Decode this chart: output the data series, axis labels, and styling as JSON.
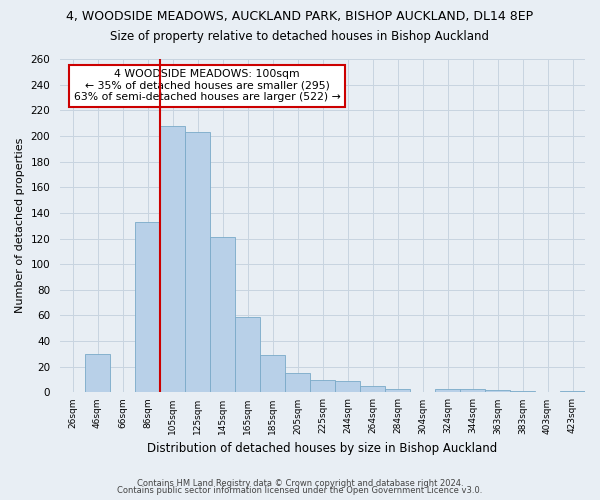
{
  "title": "4, WOODSIDE MEADOWS, AUCKLAND PARK, BISHOP AUCKLAND, DL14 8EP",
  "subtitle": "Size of property relative to detached houses in Bishop Auckland",
  "xlabel": "Distribution of detached houses by size in Bishop Auckland",
  "ylabel": "Number of detached properties",
  "bar_labels": [
    "26sqm",
    "46sqm",
    "66sqm",
    "86sqm",
    "105sqm",
    "125sqm",
    "145sqm",
    "165sqm",
    "185sqm",
    "205sqm",
    "225sqm",
    "244sqm",
    "264sqm",
    "284sqm",
    "304sqm",
    "324sqm",
    "344sqm",
    "363sqm",
    "383sqm",
    "403sqm",
    "423sqm"
  ],
  "bar_values": [
    0,
    30,
    0,
    133,
    208,
    203,
    121,
    59,
    29,
    15,
    10,
    9,
    5,
    3,
    0,
    3,
    3,
    2,
    1,
    0,
    1
  ],
  "bar_color": "#b8d0e8",
  "bar_edge_color": "#7aaac8",
  "highlight_line_color": "#cc0000",
  "highlight_bar_index": 4,
  "annotation_title": "4 WOODSIDE MEADOWS: 100sqm",
  "annotation_line1": "← 35% of detached houses are smaller (295)",
  "annotation_line2": "63% of semi-detached houses are larger (522) →",
  "annotation_box_color": "#ffffff",
  "annotation_box_edge": "#cc0000",
  "ylim": [
    0,
    260
  ],
  "yticks": [
    0,
    20,
    40,
    60,
    80,
    100,
    120,
    140,
    160,
    180,
    200,
    220,
    240,
    260
  ],
  "footer1": "Contains HM Land Registry data © Crown copyright and database right 2024.",
  "footer2": "Contains public sector information licensed under the Open Government Licence v3.0.",
  "bg_color": "#e8eef4",
  "plot_bg_color": "#e8eef4",
  "grid_color": "#c8d4e0",
  "title_fontsize": 9,
  "subtitle_fontsize": 8.5
}
